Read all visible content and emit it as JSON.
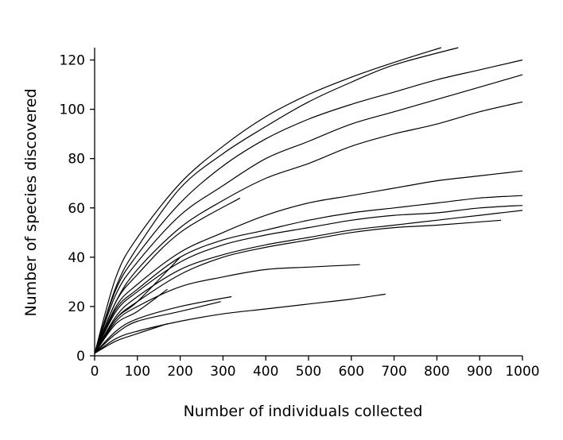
{
  "chart_data": {
    "type": "line",
    "title": "",
    "xlabel": "Number of individuals collected",
    "ylabel": "Number of species discovered",
    "xlim": [
      0,
      1000
    ],
    "ylim": [
      0,
      125
    ],
    "xticks": [
      "0",
      "100",
      "200",
      "300",
      "400",
      "500",
      "600",
      "700",
      "800",
      "900",
      "1000"
    ],
    "yticks": [
      "0",
      "20",
      "40",
      "60",
      "80",
      "100",
      "120"
    ],
    "grid": false,
    "legend": "none",
    "line_color": "#000000",
    "series": [
      {
        "x": [
          0,
          50,
          100,
          200,
          300,
          400,
          500,
          600,
          700,
          810
        ],
        "y": [
          1,
          32,
          48,
          70,
          85,
          97,
          106,
          113,
          119,
          125
        ]
      },
      {
        "x": [
          0,
          50,
          100,
          200,
          300,
          400,
          500,
          600,
          700,
          850
        ],
        "y": [
          1,
          28,
          44,
          68,
          82,
          93,
          103,
          111,
          118,
          125
        ]
      },
      {
        "x": [
          0,
          50,
          100,
          200,
          300,
          400,
          500,
          600,
          700,
          800,
          900,
          1000
        ],
        "y": [
          1,
          27,
          41,
          62,
          77,
          88,
          96,
          102,
          107,
          112,
          116,
          120
        ]
      },
      {
        "x": [
          0,
          50,
          100,
          200,
          300,
          400,
          500,
          600,
          700,
          800,
          900,
          1000
        ],
        "y": [
          1,
          25,
          38,
          57,
          69,
          80,
          87,
          94,
          99,
          104,
          109,
          114
        ]
      },
      {
        "x": [
          0,
          50,
          100,
          200,
          300,
          400,
          500,
          600,
          700,
          800,
          900,
          1000
        ],
        "y": [
          1,
          22,
          35,
          52,
          63,
          72,
          78,
          85,
          90,
          94,
          99,
          103
        ]
      },
      {
        "x": [
          0,
          50,
          100,
          200,
          340
        ],
        "y": [
          1,
          22,
          33,
          50,
          64
        ]
      },
      {
        "x": [
          0,
          50,
          100,
          200,
          300,
          400,
          500,
          600,
          700,
          800,
          900,
          1000
        ],
        "y": [
          1,
          20,
          29,
          42,
          50,
          57,
          62,
          65,
          68,
          71,
          73,
          75
        ]
      },
      {
        "x": [
          0,
          50,
          100,
          200,
          300,
          400,
          500,
          600,
          700,
          800,
          900,
          1000
        ],
        "y": [
          1,
          19,
          27,
          40,
          47,
          51,
          55,
          58,
          60,
          62,
          64,
          65
        ]
      },
      {
        "x": [
          0,
          50,
          100,
          200,
          300,
          400,
          500,
          600,
          700,
          800,
          900,
          1000
        ],
        "y": [
          1,
          18,
          26,
          38,
          45,
          49,
          52,
          55,
          57,
          58,
          60,
          61
        ]
      },
      {
        "x": [
          0,
          50,
          100,
          200,
          300,
          400,
          500,
          600,
          700,
          800,
          900,
          1000
        ],
        "y": [
          1,
          16,
          24,
          35,
          41,
          45,
          48,
          51,
          53,
          55,
          57,
          59
        ]
      },
      {
        "x": [
          0,
          50,
          100,
          200,
          300,
          400,
          500,
          600,
          700,
          800,
          950
        ],
        "y": [
          1,
          15,
          22,
          33,
          40,
          44,
          47,
          50,
          52,
          53,
          55
        ]
      },
      {
        "x": [
          0,
          50,
          100,
          200
        ],
        "y": [
          1,
          15,
          22,
          40
        ]
      },
      {
        "x": [
          0,
          50,
          100,
          200,
          300,
          400,
          500,
          620
        ],
        "y": [
          1,
          14,
          20,
          28,
          32,
          35,
          36,
          37
        ]
      },
      {
        "x": [
          0,
          50,
          100,
          170
        ],
        "y": [
          1,
          13,
          18,
          27
        ]
      },
      {
        "x": [
          0,
          50,
          100,
          200,
          320
        ],
        "y": [
          1,
          10,
          15,
          20,
          24
        ]
      },
      {
        "x": [
          0,
          50,
          100,
          200,
          295
        ],
        "y": [
          1,
          9,
          14,
          18,
          22
        ]
      },
      {
        "x": [
          0,
          50,
          100,
          200,
          300,
          400,
          500,
          600,
          680
        ],
        "y": [
          1,
          7,
          10,
          14,
          17,
          19,
          21,
          23,
          25
        ]
      },
      {
        "x": [
          0,
          50,
          100,
          170
        ],
        "y": [
          1,
          6,
          9,
          13
        ]
      }
    ]
  }
}
